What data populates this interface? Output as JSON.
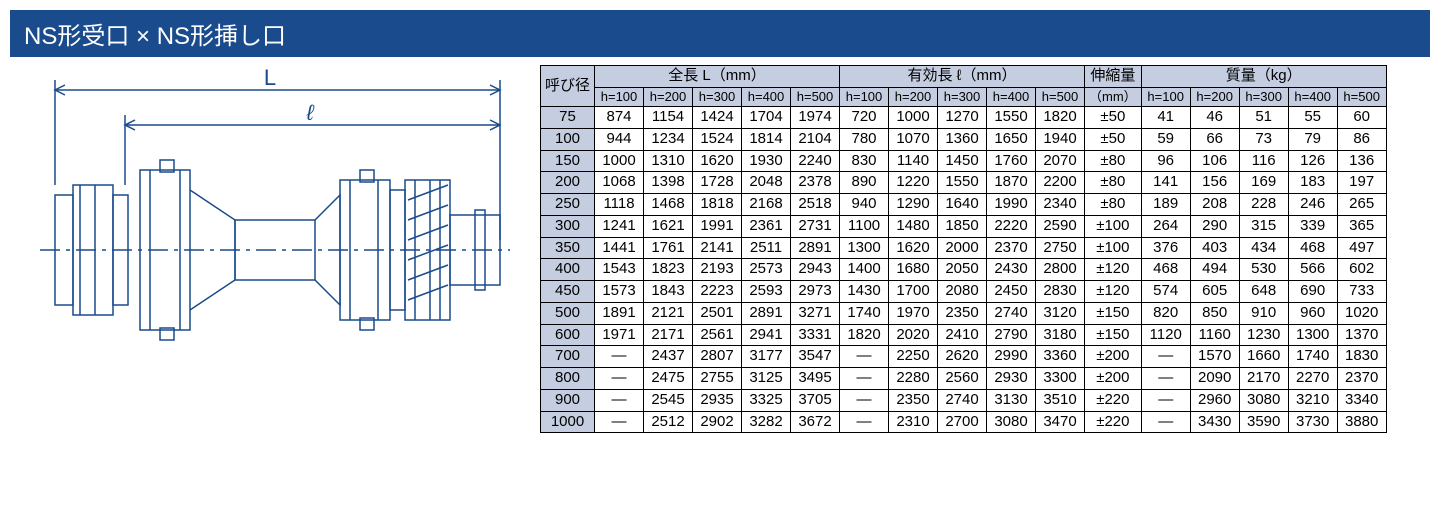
{
  "title": "NS形受口 × NS形挿し口",
  "diagram": {
    "label_L": "L",
    "label_l": "ℓ",
    "stroke_color": "#1a4b8c",
    "stroke_width": 1.5
  },
  "table": {
    "header_bg": "#c5cde0",
    "border_color": "#000000",
    "corner": "呼び径",
    "group_headers": [
      {
        "label": "全長 L（mm）",
        "span": 5
      },
      {
        "label": "有効長 ℓ（mm）",
        "span": 5
      },
      {
        "label": "伸縮量",
        "span": 1
      },
      {
        "label": "質量（kg）",
        "span": 5
      }
    ],
    "sub_headers": [
      "h=100",
      "h=200",
      "h=300",
      "h=400",
      "h=500",
      "h=100",
      "h=200",
      "h=300",
      "h=400",
      "h=500",
      "（mm）",
      "h=100",
      "h=200",
      "h=300",
      "h=400",
      "h=500"
    ],
    "rows": [
      {
        "d": "75",
        "c": [
          "874",
          "1154",
          "1424",
          "1704",
          "1974",
          "720",
          "1000",
          "1270",
          "1550",
          "1820",
          "±50",
          "41",
          "46",
          "51",
          "55",
          "60"
        ]
      },
      {
        "d": "100",
        "c": [
          "944",
          "1234",
          "1524",
          "1814",
          "2104",
          "780",
          "1070",
          "1360",
          "1650",
          "1940",
          "±50",
          "59",
          "66",
          "73",
          "79",
          "86"
        ]
      },
      {
        "d": "150",
        "c": [
          "1000",
          "1310",
          "1620",
          "1930",
          "2240",
          "830",
          "1140",
          "1450",
          "1760",
          "2070",
          "±80",
          "96",
          "106",
          "116",
          "126",
          "136"
        ]
      },
      {
        "d": "200",
        "c": [
          "1068",
          "1398",
          "1728",
          "2048",
          "2378",
          "890",
          "1220",
          "1550",
          "1870",
          "2200",
          "±80",
          "141",
          "156",
          "169",
          "183",
          "197"
        ]
      },
      {
        "d": "250",
        "c": [
          "1118",
          "1468",
          "1818",
          "2168",
          "2518",
          "940",
          "1290",
          "1640",
          "1990",
          "2340",
          "±80",
          "189",
          "208",
          "228",
          "246",
          "265"
        ]
      },
      {
        "d": "300",
        "c": [
          "1241",
          "1621",
          "1991",
          "2361",
          "2731",
          "1100",
          "1480",
          "1850",
          "2220",
          "2590",
          "±100",
          "264",
          "290",
          "315",
          "339",
          "365"
        ]
      },
      {
        "d": "350",
        "c": [
          "1441",
          "1761",
          "2141",
          "2511",
          "2891",
          "1300",
          "1620",
          "2000",
          "2370",
          "2750",
          "±100",
          "376",
          "403",
          "434",
          "468",
          "497"
        ]
      },
      {
        "d": "400",
        "c": [
          "1543",
          "1823",
          "2193",
          "2573",
          "2943",
          "1400",
          "1680",
          "2050",
          "2430",
          "2800",
          "±120",
          "468",
          "494",
          "530",
          "566",
          "602"
        ]
      },
      {
        "d": "450",
        "c": [
          "1573",
          "1843",
          "2223",
          "2593",
          "2973",
          "1430",
          "1700",
          "2080",
          "2450",
          "2830",
          "±120",
          "574",
          "605",
          "648",
          "690",
          "733"
        ]
      },
      {
        "d": "500",
        "c": [
          "1891",
          "2121",
          "2501",
          "2891",
          "3271",
          "1740",
          "1970",
          "2350",
          "2740",
          "3120",
          "±150",
          "820",
          "850",
          "910",
          "960",
          "1020"
        ]
      },
      {
        "d": "600",
        "c": [
          "1971",
          "2171",
          "2561",
          "2941",
          "3331",
          "1820",
          "2020",
          "2410",
          "2790",
          "3180",
          "±150",
          "1120",
          "1160",
          "1230",
          "1300",
          "1370"
        ]
      },
      {
        "d": "700",
        "c": [
          "—",
          "2437",
          "2807",
          "3177",
          "3547",
          "—",
          "2250",
          "2620",
          "2990",
          "3360",
          "±200",
          "—",
          "1570",
          "1660",
          "1740",
          "1830"
        ]
      },
      {
        "d": "800",
        "c": [
          "—",
          "2475",
          "2755",
          "3125",
          "3495",
          "—",
          "2280",
          "2560",
          "2930",
          "3300",
          "±200",
          "—",
          "2090",
          "2170",
          "2270",
          "2370"
        ]
      },
      {
        "d": "900",
        "c": [
          "—",
          "2545",
          "2935",
          "3325",
          "3705",
          "—",
          "2350",
          "2740",
          "3130",
          "3510",
          "±220",
          "—",
          "2960",
          "3080",
          "3210",
          "3340"
        ]
      },
      {
        "d": "1000",
        "c": [
          "—",
          "2512",
          "2902",
          "3282",
          "3672",
          "—",
          "2310",
          "2700",
          "3080",
          "3470",
          "±220",
          "—",
          "3430",
          "3590",
          "3730",
          "3880"
        ]
      }
    ]
  }
}
